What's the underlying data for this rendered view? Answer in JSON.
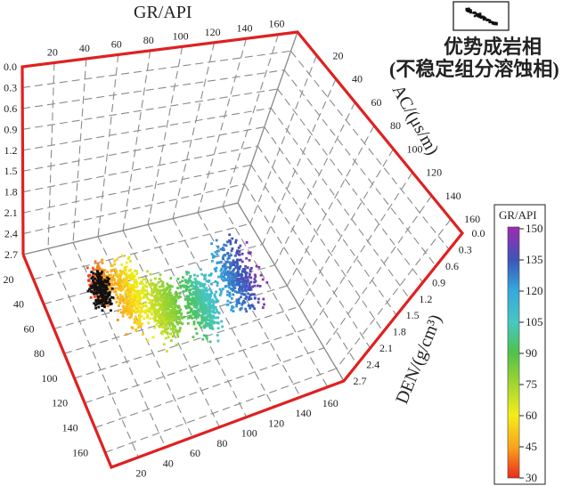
{
  "chart_data": {
    "type": "scatter",
    "subtype": "3d-scatter",
    "axes": {
      "gr": {
        "title": "GR/API",
        "ticks_top": [
          "20",
          "40",
          "60",
          "80",
          "100",
          "120",
          "140",
          "160"
        ],
        "ticks_bottom": [
          "20",
          "40",
          "60",
          "80",
          "100",
          "120",
          "140",
          "160"
        ],
        "range": [
          0,
          160
        ]
      },
      "ac": {
        "title": "AC/(μs/m)",
        "ticks_right": [
          "20",
          "40",
          "60",
          "80",
          "100",
          "120",
          "140",
          "160"
        ],
        "ticks_left": [
          "20",
          "40",
          "60",
          "80",
          "100",
          "120",
          "140",
          "160"
        ],
        "range": [
          0,
          160
        ]
      },
      "den": {
        "title": "DEN/(g/cm³)",
        "ticks_left": [
          "0.0",
          "0.3",
          "0.6",
          "0.9",
          "1.2",
          "1.5",
          "1.8",
          "2.1",
          "2.4",
          "2.7"
        ],
        "ticks_right": [
          "0.0",
          "0.3",
          "0.6",
          "0.9",
          "1.2",
          "1.5",
          "1.8",
          "2.1",
          "2.4",
          "2.7"
        ],
        "range": [
          0.0,
          2.7
        ]
      }
    },
    "grid": true,
    "legend": {
      "line1": "优势成岩相",
      "line2": "(不稳定组分溶蚀相)",
      "placement": "top-right"
    },
    "colorbar": {
      "title": "GR/API",
      "ticks": [
        "150",
        "135",
        "120",
        "105",
        "90",
        "75",
        "60",
        "45",
        "30"
      ],
      "range": [
        30,
        150
      ],
      "colors": [
        "#a02bb0",
        "#3c55b8",
        "#37a6dc",
        "#47c7c4",
        "#4ec24a",
        "#a6d630",
        "#f4ee18",
        "#f9a11c",
        "#ea2a1c"
      ]
    },
    "clusters": [
      {
        "name": "",
        "gr_range": [
          30,
          50
        ],
        "ac_range": [
          30,
          60
        ],
        "den": [
          2.3,
          2.6
        ],
        "count": 230
      },
      {
        "name": "",
        "gr_range": [
          40,
          70
        ],
        "ac_range": [
          30,
          90
        ],
        "den": [
          2.2,
          2.6
        ],
        "count": 420
      },
      {
        "name": "",
        "gr_range": [
          60,
          90
        ],
        "ac_range": [
          50,
          100
        ],
        "den": [
          2.2,
          2.6
        ],
        "count": 520
      },
      {
        "name": "",
        "gr_range": [
          85,
          115
        ],
        "ac_range": [
          50,
          110
        ],
        "den": [
          2.2,
          2.5
        ],
        "count": 480
      },
      {
        "name": "",
        "gr_range": [
          110,
          150
        ],
        "ac_range": [
          40,
          100
        ],
        "den": [
          2.1,
          2.5
        ],
        "count": 380
      },
      {
        "name": "优势成岩相",
        "gr_range": [
          30,
          50
        ],
        "ac_range": [
          30,
          60
        ],
        "den": [
          2.4,
          2.7
        ],
        "count": 180,
        "color": "#111111"
      }
    ]
  }
}
